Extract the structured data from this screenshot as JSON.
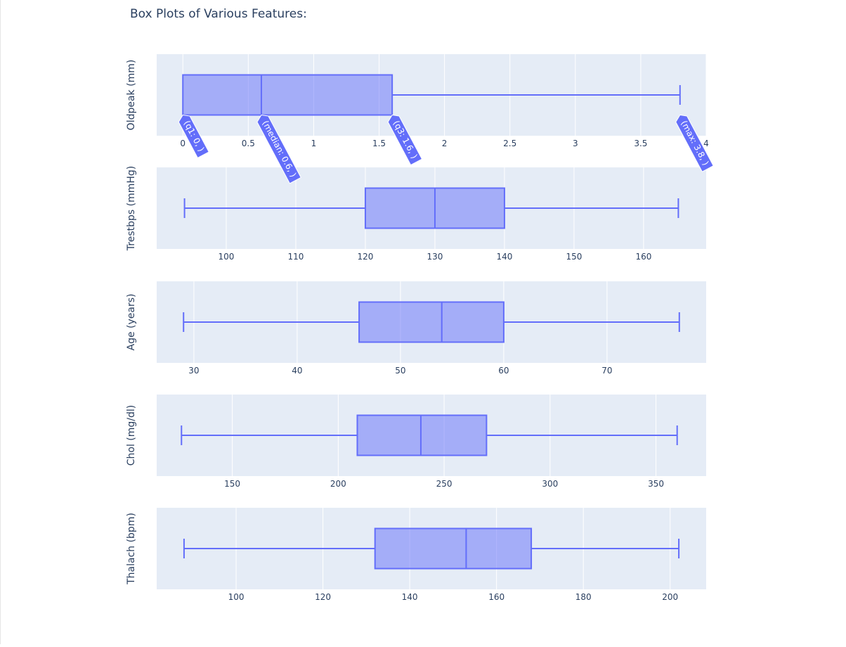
{
  "figure": {
    "title": "Box Plots of Various Features:"
  },
  "colors": {
    "plot_bg": "#E5ECF6",
    "grid": "#ffffff",
    "box_line": "#636EFA",
    "box_fill": "rgba(99,110,250,0.5)",
    "text": "#2a3f5f",
    "hover_bg": "#636EFA",
    "hover_text": "#ffffff"
  },
  "chart_data": [
    {
      "type": "box",
      "orientation": "horizontal",
      "ylabel": "Oldpeak (mm)",
      "xlim": [
        -0.2,
        4.0
      ],
      "ticks": [
        0,
        0.5,
        1,
        1.5,
        2,
        2.5,
        3,
        3.5,
        4
      ],
      "tick_labels": [
        "0",
        "0.5",
        "1",
        "1.5",
        "2",
        "2.5",
        "3",
        "3.5",
        "4"
      ],
      "stats": {
        "min": 0,
        "q1": 0,
        "median": 0.6,
        "q3": 1.6,
        "max": 3.8
      },
      "hover_labels": [
        {
          "text": "(q1: 0, )",
          "value": 0
        },
        {
          "text": "(median: 0.6, )",
          "value": 0.6
        },
        {
          "text": "(q3: 1.6, )",
          "value": 1.6
        },
        {
          "text": "(max: 3.8, )",
          "value": 3.8
        }
      ]
    },
    {
      "type": "box",
      "orientation": "horizontal",
      "ylabel": "Trestbps (mmHg)",
      "xlim": [
        90,
        169
      ],
      "ticks": [
        100,
        110,
        120,
        130,
        140,
        150,
        160
      ],
      "tick_labels": [
        "100",
        "110",
        "120",
        "130",
        "140",
        "150",
        "160"
      ],
      "stats": {
        "min": 94,
        "q1": 120,
        "median": 130,
        "q3": 140,
        "max": 165
      }
    },
    {
      "type": "box",
      "orientation": "horizontal",
      "ylabel": "Age (years)",
      "xlim": [
        26.4,
        79.6
      ],
      "ticks": [
        30,
        40,
        50,
        60,
        70
      ],
      "tick_labels": [
        "30",
        "40",
        "50",
        "60",
        "70"
      ],
      "stats": {
        "min": 29,
        "q1": 46,
        "median": 54,
        "q3": 60,
        "max": 77
      }
    },
    {
      "type": "box",
      "orientation": "horizontal",
      "ylabel": "Chol (mg/dl)",
      "xlim": [
        114.3,
        373.7
      ],
      "ticks": [
        150,
        200,
        250,
        300,
        350
      ],
      "tick_labels": [
        "150",
        "200",
        "250",
        "300",
        "350"
      ],
      "stats": {
        "min": 126,
        "q1": 209,
        "median": 239,
        "q3": 270,
        "max": 360
      }
    },
    {
      "type": "box",
      "orientation": "horizontal",
      "ylabel": "Thalach (bpm)",
      "xlim": [
        81.7,
        208.3
      ],
      "ticks": [
        100,
        120,
        140,
        160,
        180,
        200
      ],
      "tick_labels": [
        "100",
        "120",
        "140",
        "160",
        "180",
        "200"
      ],
      "stats": {
        "min": 88,
        "q1": 132,
        "median": 153,
        "q3": 168,
        "max": 202
      }
    }
  ]
}
